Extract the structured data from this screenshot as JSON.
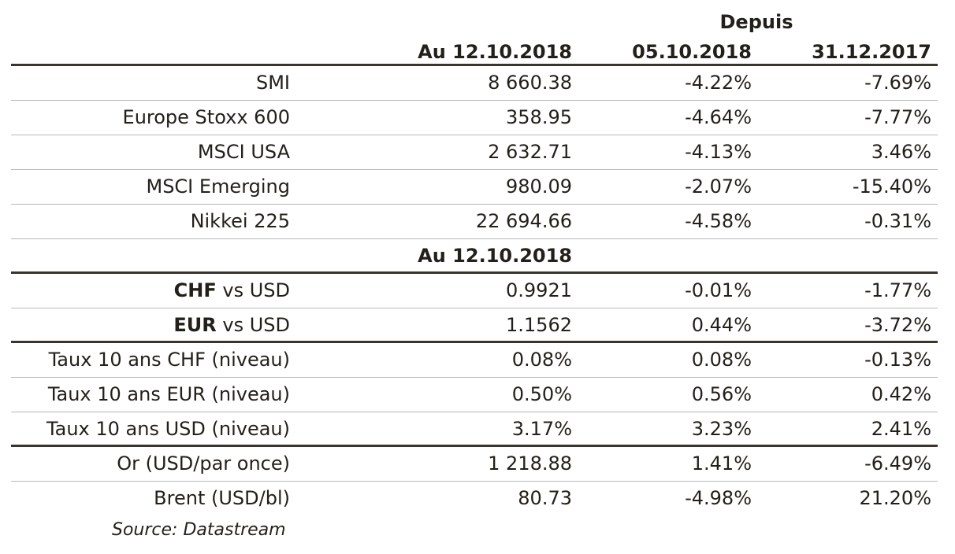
{
  "header": {
    "group_label": "Depuis",
    "col1": "Au 12.10.2018",
    "col2": "05.10.2018",
    "col3": "31.12.2017"
  },
  "rows": [
    {
      "label": "SMI",
      "v1": "8 660.38",
      "v2": "-4.22%",
      "v3": "-7.69%"
    },
    {
      "label": "Europe Stoxx 600",
      "v1": "358.95",
      "v2": "-4.64%",
      "v3": "-7.77%"
    },
    {
      "label": "MSCI USA",
      "v1": "2 632.71",
      "v2": "-4.13%",
      "v3": "3.46%"
    },
    {
      "label": "MSCI Emerging",
      "v1": "980.09",
      "v2": "-2.07%",
      "v3": "-15.40%"
    },
    {
      "label": "Nikkei 225",
      "v1": "22 694.66",
      "v2": "-4.58%",
      "v3": "-0.31%"
    },
    {
      "subheader": "Au 12.10.2018"
    },
    {
      "label_bold": "CHF",
      "label_rest": " vs USD",
      "v1": "0.9921",
      "v2": "-0.01%",
      "v3": "-1.77%"
    },
    {
      "label_bold": "EUR",
      "label_rest": " vs USD",
      "v1": "1.1562",
      "v2": "0.44%",
      "v3": "-3.72%"
    },
    {
      "label": "Taux 10 ans CHF (niveau)",
      "v1": "0.08%",
      "v2": "0.08%",
      "v3": "-0.13%"
    },
    {
      "label": "Taux 10 ans EUR (niveau)",
      "v1": "0.50%",
      "v2": "0.56%",
      "v3": "0.42%"
    },
    {
      "label": "Taux 10 ans USD (niveau)",
      "v1": "3.17%",
      "v2": "3.23%",
      "v3": "2.41%"
    },
    {
      "label": "Or (USD/par once)",
      "v1": "1 218.88",
      "v2": "1.41%",
      "v3": "-6.49%"
    },
    {
      "label": "Brent (USD/bl)",
      "v1": "80.73",
      "v2": "-4.98%",
      "v3": "21.20%"
    }
  ],
  "source": "Source: Datastream",
  "colors": {
    "text": "#231f1a",
    "rule_thick": "#3a342c",
    "rule_thin": "#b8b8b8"
  }
}
